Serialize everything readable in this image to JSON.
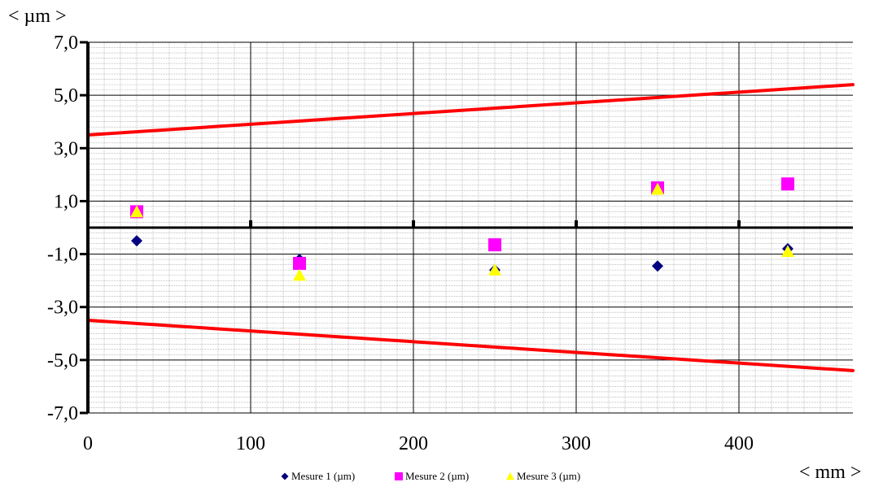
{
  "chart_data": {
    "type": "scatter",
    "ylabel": "< µm >",
    "xlabel": "< mm >",
    "xlim": [
      0,
      470
    ],
    "ylim": [
      -7,
      7
    ],
    "x_ticks": [
      0,
      100,
      200,
      300,
      400
    ],
    "x_tick_labels": [
      "0",
      "100",
      "200",
      "300",
      "400"
    ],
    "y_ticks": [
      7,
      5,
      3,
      1,
      -1,
      -3,
      -5,
      -7
    ],
    "y_tick_labels": [
      "7,0",
      "5,0",
      "3,0",
      "1,0",
      "-1,0",
      "-3,0",
      "-5,0",
      "-7,0"
    ],
    "grid": true,
    "legend_position": "bottom-center",
    "series": [
      {
        "name": "Mesure 1 (µm)",
        "marker": "diamond",
        "color": "#000080",
        "x": [
          30,
          130,
          250,
          350,
          430
        ],
        "y": [
          -0.5,
          -1.2,
          -1.6,
          -1.45,
          -0.8
        ]
      },
      {
        "name": "Mesure 2 (µm)",
        "marker": "square",
        "color": "#FF00FF",
        "x": [
          30,
          130,
          250,
          350,
          430
        ],
        "y": [
          0.6,
          -1.35,
          -0.65,
          1.5,
          1.65
        ]
      },
      {
        "name": "Mesure 3 (µm)",
        "marker": "triangle",
        "color": "#FFFF00",
        "x": [
          30,
          130,
          250,
          350,
          430
        ],
        "y": [
          0.6,
          -1.8,
          -1.6,
          1.45,
          -0.9
        ]
      }
    ],
    "tolerance_lines": [
      {
        "color": "#FF0000",
        "x": [
          0,
          470
        ],
        "y": [
          3.5,
          5.4
        ]
      },
      {
        "color": "#FF0000",
        "x": [
          0,
          470
        ],
        "y": [
          -3.5,
          -5.4
        ]
      }
    ]
  }
}
